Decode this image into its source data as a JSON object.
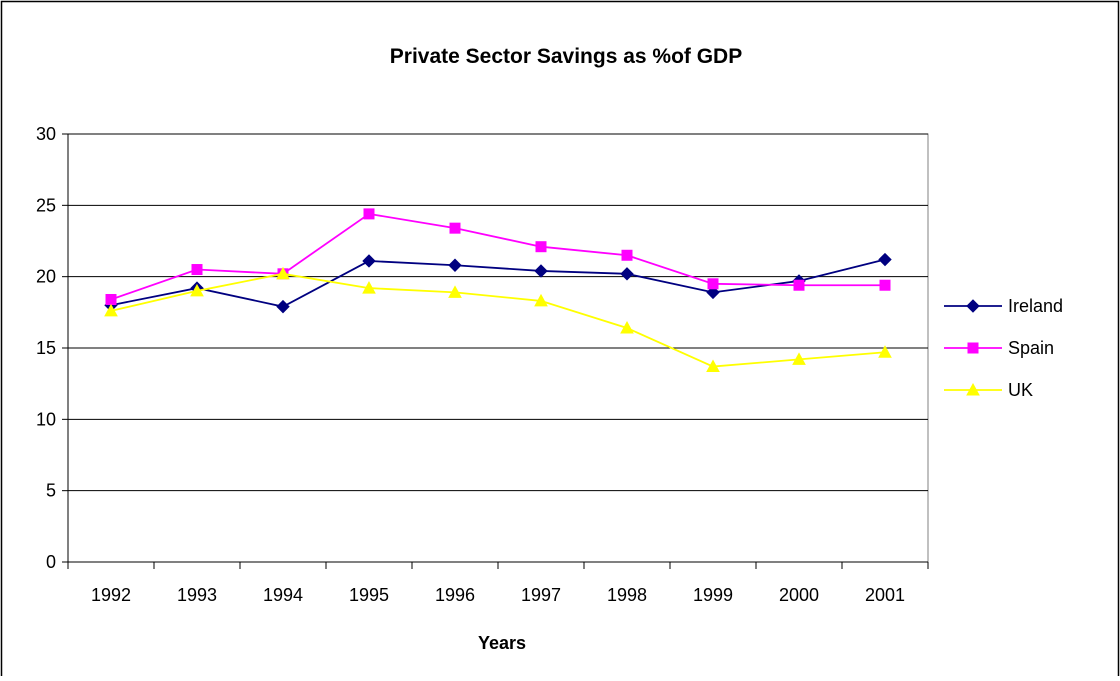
{
  "chart_data": {
    "type": "line",
    "title": "Private Sector Savings as %of GDP",
    "xlabel": "Years",
    "ylabel": "",
    "categories": [
      "1992",
      "1993",
      "1994",
      "1995",
      "1996",
      "1997",
      "1998",
      "1999",
      "2000",
      "2001"
    ],
    "ylim": [
      0,
      30
    ],
    "yticks": [
      "0",
      "5",
      "10",
      "15",
      "20",
      "25",
      "30"
    ],
    "grid": true,
    "legend_position": "right",
    "series": [
      {
        "name": "Ireland",
        "color": "#000080",
        "marker": "diamond",
        "values": [
          18.0,
          19.2,
          17.9,
          21.1,
          20.8,
          20.4,
          20.2,
          18.9,
          19.7,
          21.2
        ]
      },
      {
        "name": "Spain",
        "color": "#ff00ff",
        "marker": "square",
        "values": [
          18.4,
          20.5,
          20.2,
          24.4,
          23.4,
          22.1,
          21.5,
          19.5,
          19.4,
          19.4
        ]
      },
      {
        "name": "UK",
        "color": "#ffff00",
        "marker": "triangle",
        "values": [
          17.6,
          19.0,
          20.2,
          19.2,
          18.9,
          18.3,
          16.4,
          13.7,
          14.2,
          14.7
        ]
      }
    ]
  }
}
